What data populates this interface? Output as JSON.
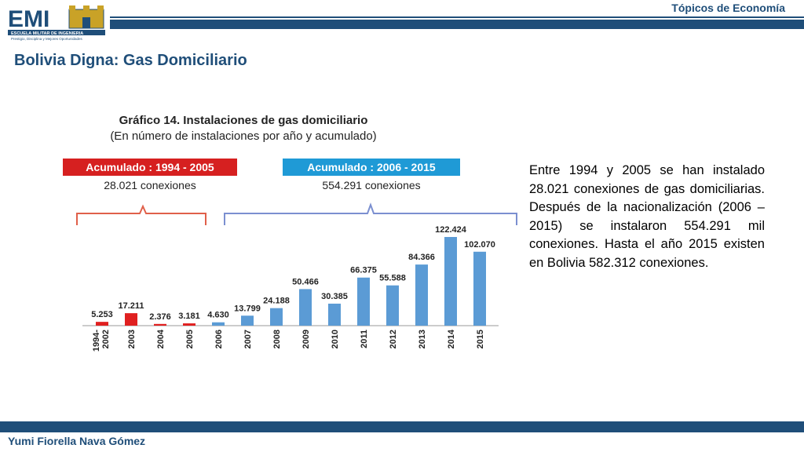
{
  "header": {
    "logo_text": "EMI",
    "logo_sub1": "ESCUELA MILITAR DE INGENIERIA",
    "logo_sub2": "Prestigio, Disciplina y Mejores Oportunidades",
    "topic": "Tópicos de Economía"
  },
  "slide": {
    "title": "Bolivia Digna: Gas Domiciliario",
    "body": "Entre 1994 y 2005 se han instalado 28.021 conexiones de gas domiciliarias. Después de la nacionalización (2006 – 2015) se instalaron 554.291 mil conexiones. Hasta el año 2015 existen en Bolivia 582.312 conexiones."
  },
  "footer": {
    "author": "Yumi Fiorella Nava Gómez"
  },
  "chart_data": {
    "type": "bar",
    "title": "Gráfico 14. Instalaciones de gas domiciliario",
    "subtitle": "(En número de instalaciones por año y acumulado)",
    "categories": [
      "1994-\n2002",
      "2003",
      "2004",
      "2005",
      "2006",
      "2007",
      "2008",
      "2009",
      "2010",
      "2011",
      "2012",
      "2013",
      "2014",
      "2015"
    ],
    "values": [
      5253,
      17211,
      2376,
      3181,
      4630,
      13799,
      24188,
      50466,
      30385,
      66375,
      55588,
      84366,
      122424,
      102070
    ],
    "value_labels": [
      "5.253",
      "17.211",
      "2.376",
      "3.181",
      "4.630",
      "13.799",
      "24.188",
      "50.466",
      "30.385",
      "66.375",
      "55.588",
      "84.366",
      "122.424",
      "102.070"
    ],
    "colors": [
      "#e02020",
      "#e02020",
      "#e02020",
      "#e02020",
      "#5b9bd5",
      "#5b9bd5",
      "#5b9bd5",
      "#5b9bd5",
      "#5b9bd5",
      "#5b9bd5",
      "#5b9bd5",
      "#5b9bd5",
      "#5b9bd5",
      "#5b9bd5"
    ],
    "groups": [
      {
        "label": "Acumulado : 1994 - 2005",
        "total": "28.021 conexiones",
        "color": "#d62020",
        "bracket_color": "#e0604a"
      },
      {
        "label": "Acumulado : 2006 - 2015",
        "total": "554.291 conexiones",
        "color": "#1f9ad6",
        "bracket_color": "#7b8fd0"
      }
    ],
    "ylim": [
      0,
      130000
    ],
    "grid": false
  }
}
